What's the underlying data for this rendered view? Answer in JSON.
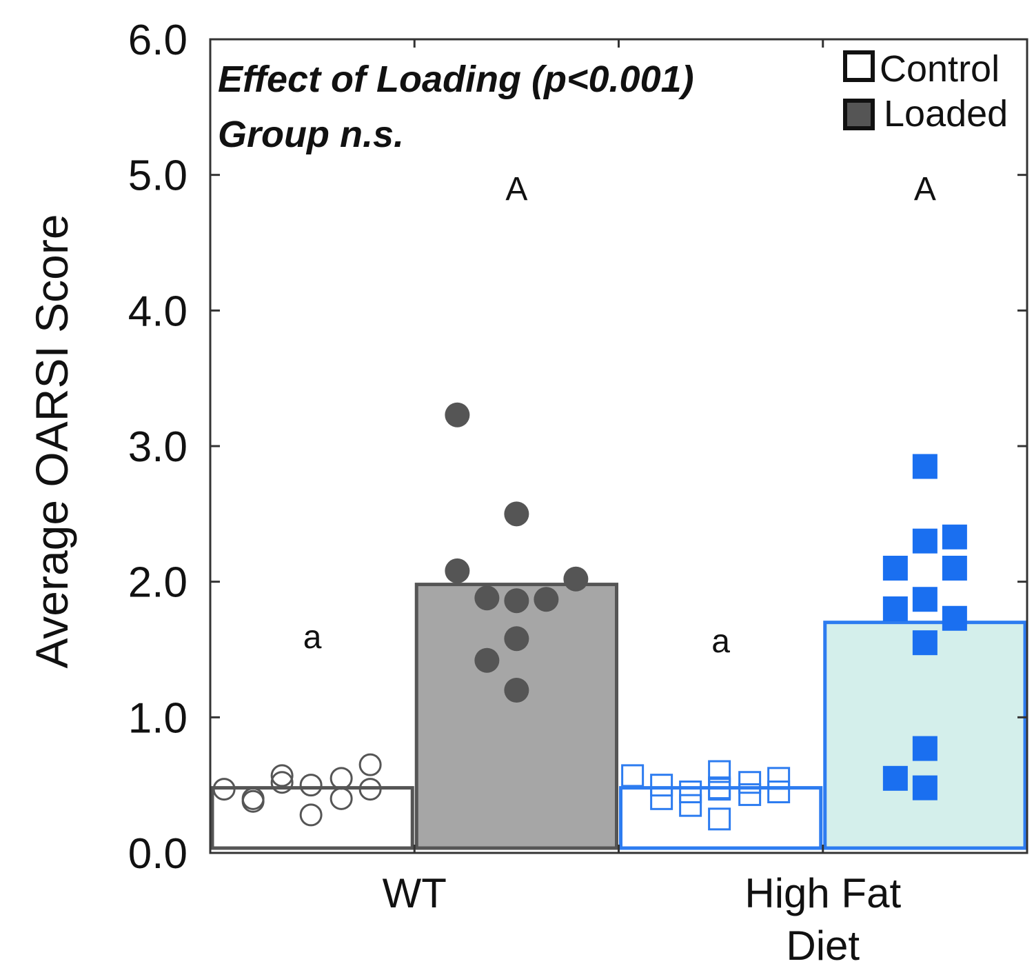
{
  "chart_data": {
    "type": "bar",
    "ylabel": "Average OARSI Score",
    "ylim": [
      0,
      6
    ],
    "yticks": [
      "0.0",
      "1.0",
      "2.0",
      "3.0",
      "4.0",
      "5.0",
      "6.0"
    ],
    "grid": false,
    "groups": [
      "WT",
      "High Fat Diet"
    ],
    "group_label_lines": [
      [
        "WT"
      ],
      [
        "High Fat",
        "Diet"
      ]
    ],
    "series": [
      {
        "name": "Control",
        "values": [
          0.48,
          0.48
        ]
      },
      {
        "name": "Loaded",
        "values": [
          1.98,
          1.7
        ]
      }
    ],
    "bars": [
      {
        "group": "WT",
        "condition": "Control",
        "value": 0.48,
        "letter": "a",
        "fill": "#ffffff",
        "stroke": "#555555",
        "marker": "circle-open",
        "marker_color": "#555555",
        "points": [
          0.47,
          0.38,
          0.4,
          0.57,
          0.28,
          0.5,
          0.52,
          0.4,
          0.55,
          0.47,
          0.65
        ]
      },
      {
        "group": "WT",
        "condition": "Loaded",
        "value": 1.98,
        "letter": "A",
        "fill": "#a6a6a6",
        "stroke": "#555555",
        "marker": "circle-filled",
        "marker_color": "#555555",
        "points": [
          3.23,
          2.5,
          2.08,
          1.88,
          1.42,
          1.86,
          1.58,
          1.2,
          1.87,
          2.02
        ]
      },
      {
        "group": "High Fat Diet",
        "condition": "Control",
        "value": 0.48,
        "letter": "a",
        "fill": "#ffffff",
        "stroke": "#2d7cf0",
        "marker": "square-open",
        "marker_color": "#2d7cf0",
        "points": [
          0.57,
          0.5,
          0.4,
          0.45,
          0.35,
          0.47,
          0.6,
          0.48,
          0.25,
          0.52,
          0.43,
          0.55,
          0.45
        ]
      },
      {
        "group": "High Fat Diet",
        "condition": "Loaded",
        "value": 1.7,
        "letter": "A",
        "fill": "#d4efeb",
        "stroke": "#2d7cf0",
        "marker": "square-filled",
        "marker_color": "#1a6ff0",
        "points": [
          2.1,
          1.8,
          0.55,
          2.85,
          2.3,
          1.87,
          1.55,
          0.77,
          0.48,
          2.33,
          2.1,
          1.73
        ]
      }
    ],
    "annotations": [
      "Effect of Loading (p<0.001)",
      "Group n.s."
    ],
    "legend": {
      "position": "top-right",
      "entries": [
        "Control",
        "Loaded"
      ],
      "colors": [
        "#ffffff",
        "#555555"
      ]
    }
  }
}
